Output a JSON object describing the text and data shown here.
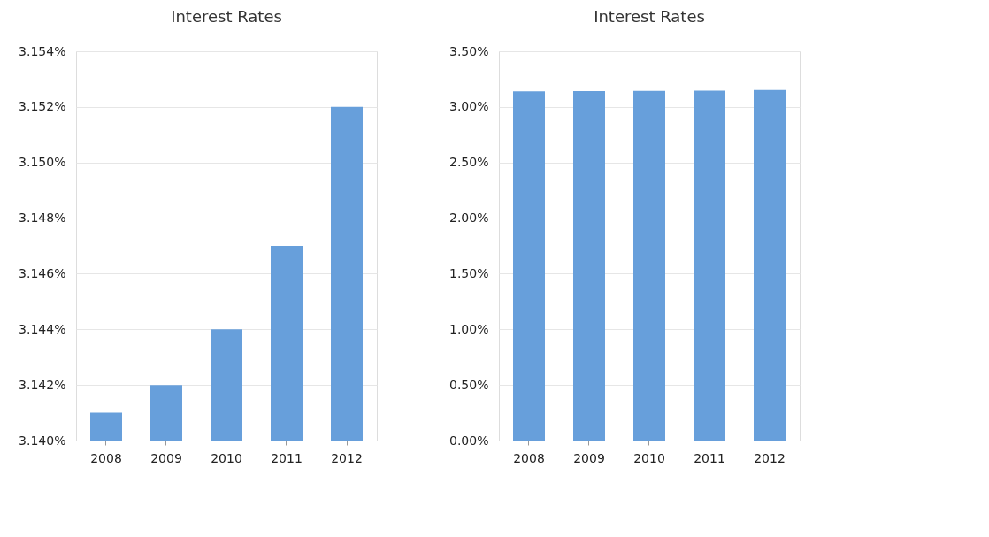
{
  "chart_data": [
    {
      "type": "bar",
      "title": "Interest Rates",
      "categories": [
        "2008",
        "2009",
        "2010",
        "2011",
        "2012"
      ],
      "values": [
        3.141,
        3.142,
        3.144,
        3.147,
        3.152
      ],
      "color": "#679fdb",
      "ylim": [
        3.14,
        3.154
      ],
      "yticks": [
        {
          "value": 3.14,
          "label": "3.140%"
        },
        {
          "value": 3.142,
          "label": "3.142%"
        },
        {
          "value": 3.144,
          "label": "3.144%"
        },
        {
          "value": 3.146,
          "label": "3.146%"
        },
        {
          "value": 3.148,
          "label": "3.148%"
        },
        {
          "value": 3.15,
          "label": "3.150%"
        },
        {
          "value": 3.152,
          "label": "3.152%"
        },
        {
          "value": 3.154,
          "label": "3.154%"
        }
      ],
      "grid": "y"
    },
    {
      "type": "bar",
      "title": "Interest Rates",
      "categories": [
        "2008",
        "2009",
        "2010",
        "2011",
        "2012"
      ],
      "values": [
        3.141,
        3.142,
        3.144,
        3.147,
        3.152
      ],
      "color": "#679fdb",
      "ylim": [
        0,
        3.5
      ],
      "yticks": [
        {
          "value": 0,
          "label": "0.00%"
        },
        {
          "value": 0.5,
          "label": "0.50%"
        },
        {
          "value": 1,
          "label": "1.00%"
        },
        {
          "value": 1.5,
          "label": "1.50%"
        },
        {
          "value": 2,
          "label": "2.00%"
        },
        {
          "value": 2.5,
          "label": "2.50%"
        },
        {
          "value": 3,
          "label": "3.00%"
        },
        {
          "value": 3.5,
          "label": "3.50%"
        }
      ],
      "grid": "y"
    }
  ]
}
